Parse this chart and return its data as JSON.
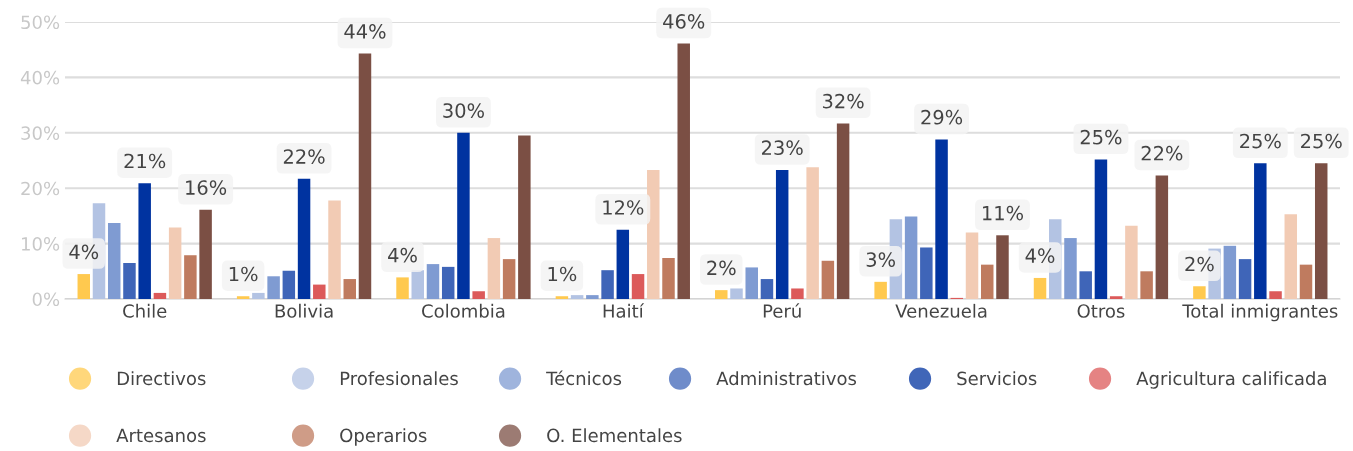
{
  "chart_data": {
    "type": "bar",
    "categories": [
      "Chile",
      "Bolivia",
      "Colombia",
      "Haití",
      "Perú",
      "Venezuela",
      "Otros",
      "Total inmigrantes"
    ],
    "series": [
      {
        "name": "Directivos",
        "color": "#ffc94f",
        "values": [
          4.5,
          0.5,
          3.9,
          0.5,
          1.6,
          3.1,
          3.8,
          2.3
        ],
        "value_labels": [
          "4%",
          "1%",
          "4%",
          "1%",
          "2%",
          "3%",
          "4%",
          "2%"
        ]
      },
      {
        "name": "Profesionales",
        "color": "#b3c3e3",
        "values": [
          17.3,
          1.1,
          5.2,
          0.7,
          1.9,
          14.4,
          14.4,
          9.1
        ]
      },
      {
        "name": "Técnicos",
        "color": "#7f9bd2",
        "values": [
          13.7,
          4.1,
          6.3,
          0.7,
          5.7,
          14.9,
          11.0,
          9.6
        ]
      },
      {
        "name": "Administrativos",
        "color": "#3f65b8",
        "values": [
          6.5,
          5.1,
          5.8,
          5.2,
          3.6,
          9.3,
          5.0,
          7.2
        ]
      },
      {
        "name": "Servicios",
        "color": "#0033a0",
        "values": [
          20.9,
          21.7,
          30.0,
          12.5,
          23.3,
          28.8,
          25.2,
          24.5
        ],
        "value_labels": [
          "21%",
          "22%",
          "30%",
          "12%",
          "23%",
          "29%",
          "25%",
          "25%"
        ]
      },
      {
        "name": "Agricultura calificada",
        "color": "#dc5a5a",
        "values": [
          1.1,
          2.6,
          1.4,
          4.5,
          1.9,
          0.2,
          0.5,
          1.4
        ]
      },
      {
        "name": "Artesanos",
        "color": "#f2cbb4",
        "values": [
          12.9,
          17.8,
          11.0,
          23.3,
          23.8,
          12.0,
          13.2,
          15.3
        ]
      },
      {
        "name": "Operarios",
        "color": "#bf7b5f",
        "values": [
          7.9,
          3.6,
          7.2,
          7.4,
          6.9,
          6.2,
          5.0,
          6.2
        ]
      },
      {
        "name": "O. Elementales",
        "color": "#7b4f44",
        "values": [
          16.1,
          44.3,
          29.5,
          46.1,
          31.7,
          11.5,
          22.3,
          24.5
        ],
        "value_labels": [
          "16%",
          "44%",
          null,
          "46%",
          "32%",
          "11%",
          "22%",
          "25%"
        ]
      }
    ],
    "ylim": [
      0,
      50
    ],
    "yticks": [
      {
        "value": 0,
        "label": "0%"
      },
      {
        "value": 10,
        "label": "10%"
      },
      {
        "value": 20,
        "label": "20%"
      },
      {
        "value": 30,
        "label": "30%"
      },
      {
        "value": 40,
        "label": "40%"
      },
      {
        "value": 50,
        "label": "50%"
      }
    ],
    "grid": "y",
    "legend": "bottom"
  }
}
